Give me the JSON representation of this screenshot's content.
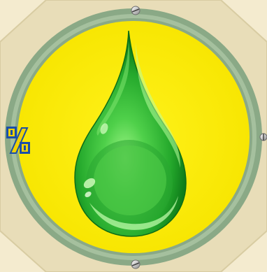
{
  "gauge": {
    "indicator_icon": "percent-icon",
    "content_icon": "green-liquid-drop-icon",
    "screw_icons": [
      "screw-top-icon",
      "screw-right-icon",
      "screw-bottom-icon"
    ]
  },
  "colors": {
    "background": "#f4ebcf",
    "hex_frame": "#e6dbb6",
    "ring_outer": "#8fae8c",
    "ring_inner": "#a8c3a1",
    "dial_face": "#fbec11",
    "drop_dark": "#128a1e",
    "drop_mid": "#2fbf38",
    "drop_light": "#8ff07a",
    "badge_yellow": "#f0d200",
    "badge_blue": "#1a4fa8"
  }
}
